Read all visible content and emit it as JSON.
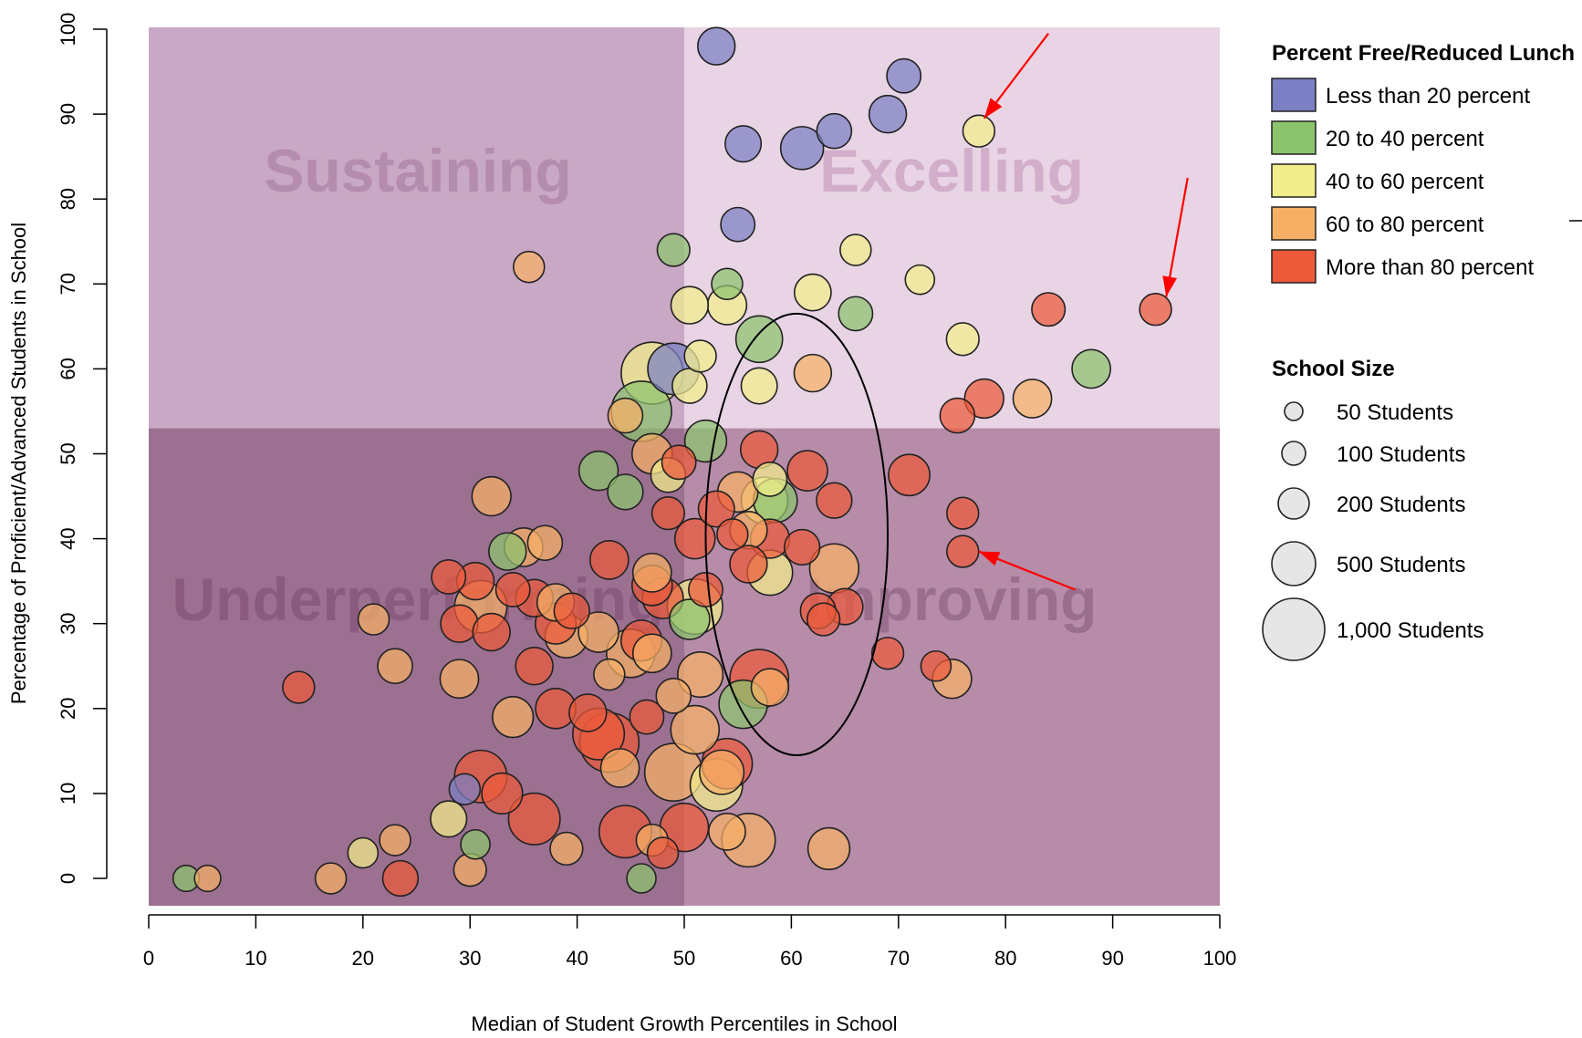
{
  "chart_data": {
    "type": "scatter",
    "xlabel": "Median of Student Growth Percentiles in School",
    "ylabel": "Percentage of Proficient/Advanced Students in School",
    "xlim": [
      0,
      100
    ],
    "ylim": [
      0,
      100
    ],
    "x_ticks": [
      "0",
      "10",
      "20",
      "30",
      "40",
      "50",
      "60",
      "70",
      "80",
      "90",
      "100"
    ],
    "y_ticks": [
      "0",
      "10",
      "20",
      "30",
      "40",
      "50",
      "60",
      "70",
      "80",
      "90",
      "100"
    ],
    "quadrant_split": {
      "x": 50,
      "y": 53
    },
    "quadrants": [
      {
        "label": "Sustaining",
        "position": "top-left",
        "color": "#c8a8c4"
      },
      {
        "label": "Excelling",
        "position": "top-right",
        "color": "#e8d4e4"
      },
      {
        "label": "Underperforming",
        "position": "bottom-left",
        "color": "#9c7090"
      },
      {
        "label": "Improving",
        "position": "bottom-right",
        "color": "#b68ca8"
      }
    ],
    "color_legend": {
      "title": "Percent Free/Reduced Lunch",
      "placement": "top-right",
      "entries": [
        {
          "key": "lt20",
          "label": "Less than 20 percent",
          "color": "#7b7fc4"
        },
        {
          "key": "20_40",
          "label": "20 to 40 percent",
          "color": "#8cc46e"
        },
        {
          "key": "40_60",
          "label": "40 to 60 percent",
          "color": "#f2ee8c"
        },
        {
          "key": "60_80",
          "label": "60 to 80 percent",
          "color": "#f6b066"
        },
        {
          "key": "gt80",
          "label": "More than 80 percent",
          "color": "#ec5a3a"
        }
      ]
    },
    "size_legend": {
      "title": "School Size",
      "placement": "right",
      "entries": [
        {
          "label": "50 Students",
          "students": 50
        },
        {
          "label": "100 Students",
          "students": 100
        },
        {
          "label": "200 Students",
          "students": 200
        },
        {
          "label": "500 Students",
          "students": 500
        },
        {
          "label": "1,000 Students",
          "students": 1000
        }
      ]
    },
    "points": [
      {
        "x": 53,
        "y": 98,
        "g": "lt20",
        "s": 200
      },
      {
        "x": 70.5,
        "y": 94.5,
        "g": "lt20",
        "s": 150
      },
      {
        "x": 69,
        "y": 90,
        "g": "lt20",
        "s": 200
      },
      {
        "x": 77.5,
        "y": 88,
        "g": "40_60",
        "s": 120
      },
      {
        "x": 64,
        "y": 88,
        "g": "lt20",
        "s": 160
      },
      {
        "x": 55.5,
        "y": 86.5,
        "g": "lt20",
        "s": 180
      },
      {
        "x": 61,
        "y": 86,
        "g": "lt20",
        "s": 300
      },
      {
        "x": 55,
        "y": 77,
        "g": "lt20",
        "s": 150
      },
      {
        "x": 49,
        "y": 74,
        "g": "20_40",
        "s": 130
      },
      {
        "x": 66,
        "y": 74,
        "g": "40_60",
        "s": 110
      },
      {
        "x": 35.5,
        "y": 72,
        "g": "60_80",
        "s": 110
      },
      {
        "x": 72,
        "y": 70.5,
        "g": "40_60",
        "s": 90
      },
      {
        "x": 54,
        "y": 70,
        "g": "20_40",
        "s": 110
      },
      {
        "x": 62,
        "y": 69,
        "g": "40_60",
        "s": 190
      },
      {
        "x": 50.5,
        "y": 67.5,
        "g": "40_60",
        "s": 200
      },
      {
        "x": 54,
        "y": 67.5,
        "g": "40_60",
        "s": 230
      },
      {
        "x": 84,
        "y": 67,
        "g": "gt80",
        "s": 140
      },
      {
        "x": 94,
        "y": 67,
        "g": "gt80",
        "s": 120
      },
      {
        "x": 66,
        "y": 66.5,
        "g": "20_40",
        "s": 150
      },
      {
        "x": 57,
        "y": 63.5,
        "g": "20_40",
        "s": 380
      },
      {
        "x": 76,
        "y": 63.5,
        "g": "40_60",
        "s": 130
      },
      {
        "x": 49,
        "y": 60,
        "g": "lt20",
        "s": 500
      },
      {
        "x": 47,
        "y": 59.5,
        "g": "40_60",
        "s": 800
      },
      {
        "x": 51.5,
        "y": 61.5,
        "g": "40_60",
        "s": 120
      },
      {
        "x": 88,
        "y": 60,
        "g": "20_40",
        "s": 220
      },
      {
        "x": 62,
        "y": 59.5,
        "g": "60_80",
        "s": 200
      },
      {
        "x": 50.5,
        "y": 58,
        "g": "40_60",
        "s": 160
      },
      {
        "x": 57,
        "y": 58,
        "g": "40_60",
        "s": 180
      },
      {
        "x": 78,
        "y": 56.5,
        "g": "gt80",
        "s": 230
      },
      {
        "x": 82.5,
        "y": 56.5,
        "g": "60_80",
        "s": 220
      },
      {
        "x": 46,
        "y": 55,
        "g": "20_40",
        "s": 750
      },
      {
        "x": 44.5,
        "y": 54.5,
        "g": "60_80",
        "s": 160
      },
      {
        "x": 75.5,
        "y": 54.5,
        "g": "gt80",
        "s": 160
      },
      {
        "x": 52,
        "y": 51.5,
        "g": "20_40",
        "s": 280
      },
      {
        "x": 57,
        "y": 50.5,
        "g": "gt80",
        "s": 200
      },
      {
        "x": 47,
        "y": 50,
        "g": "60_80",
        "s": 250
      },
      {
        "x": 49.5,
        "y": 49,
        "g": "gt80",
        "s": 150
      },
      {
        "x": 61.5,
        "y": 48,
        "g": "gt80",
        "s": 250
      },
      {
        "x": 71,
        "y": 47.5,
        "g": "gt80",
        "s": 270
      },
      {
        "x": 42,
        "y": 48,
        "g": "20_40",
        "s": 230
      },
      {
        "x": 48.5,
        "y": 47.5,
        "g": "40_60",
        "s": 160
      },
      {
        "x": 58,
        "y": 47,
        "g": "40_60",
        "s": 150
      },
      {
        "x": 32,
        "y": 45,
        "g": "60_80",
        "s": 230
      },
      {
        "x": 44.5,
        "y": 45.5,
        "g": "20_40",
        "s": 170
      },
      {
        "x": 55,
        "y": 45.5,
        "g": "60_80",
        "s": 250
      },
      {
        "x": 57.5,
        "y": 44.5,
        "g": "40_60",
        "s": 380
      },
      {
        "x": 58.5,
        "y": 44.5,
        "g": "20_40",
        "s": 320
      },
      {
        "x": 64,
        "y": 44.5,
        "g": "gt80",
        "s": 170
      },
      {
        "x": 53,
        "y": 43.5,
        "g": "gt80",
        "s": 180
      },
      {
        "x": 48.5,
        "y": 43,
        "g": "gt80",
        "s": 130
      },
      {
        "x": 76,
        "y": 43,
        "g": "gt80",
        "s": 120
      },
      {
        "x": 56,
        "y": 41,
        "g": "60_80",
        "s": 200
      },
      {
        "x": 54.5,
        "y": 40.5,
        "g": "gt80",
        "s": 110
      },
      {
        "x": 51,
        "y": 40,
        "g": "gt80",
        "s": 250
      },
      {
        "x": 58,
        "y": 40,
        "g": "gt80",
        "s": 230
      },
      {
        "x": 37,
        "y": 39.5,
        "g": "60_80",
        "s": 160
      },
      {
        "x": 35,
        "y": 39,
        "g": "60_80",
        "s": 220
      },
      {
        "x": 33.5,
        "y": 38.5,
        "g": "20_40",
        "s": 200
      },
      {
        "x": 61,
        "y": 39,
        "g": "gt80",
        "s": 170
      },
      {
        "x": 76,
        "y": 38.5,
        "g": "gt80",
        "s": 120
      },
      {
        "x": 43,
        "y": 37.5,
        "g": "gt80",
        "s": 220
      },
      {
        "x": 56,
        "y": 37,
        "g": "gt80",
        "s": 200
      },
      {
        "x": 64,
        "y": 36.5,
        "g": "60_80",
        "s": 440
      },
      {
        "x": 58,
        "y": 36,
        "g": "40_60",
        "s": 350
      },
      {
        "x": 47,
        "y": 36,
        "g": "60_80",
        "s": 220
      },
      {
        "x": 28,
        "y": 35.5,
        "g": "gt80",
        "s": 150
      },
      {
        "x": 30.5,
        "y": 35,
        "g": "gt80",
        "s": 200
      },
      {
        "x": 47,
        "y": 34.5,
        "g": "gt80",
        "s": 250
      },
      {
        "x": 34,
        "y": 34,
        "g": "gt80",
        "s": 150
      },
      {
        "x": 52,
        "y": 34,
        "g": "gt80",
        "s": 150
      },
      {
        "x": 48,
        "y": 33,
        "g": "gt80",
        "s": 260
      },
      {
        "x": 36,
        "y": 33,
        "g": "gt80",
        "s": 200
      },
      {
        "x": 38,
        "y": 32.5,
        "g": "60_80",
        "s": 200
      },
      {
        "x": 51,
        "y": 32,
        "g": "40_60",
        "s": 600
      },
      {
        "x": 31,
        "y": 32,
        "g": "60_80",
        "s": 520
      },
      {
        "x": 39.5,
        "y": 31.5,
        "g": "gt80",
        "s": 170
      },
      {
        "x": 62.5,
        "y": 31.5,
        "g": "gt80",
        "s": 170
      },
      {
        "x": 65,
        "y": 32,
        "g": "gt80",
        "s": 180
      },
      {
        "x": 63,
        "y": 30.5,
        "g": "gt80",
        "s": 130
      },
      {
        "x": 50.5,
        "y": 30.5,
        "g": "20_40",
        "s": 250
      },
      {
        "x": 21,
        "y": 30.5,
        "g": "60_80",
        "s": 110
      },
      {
        "x": 38,
        "y": 30,
        "g": "gt80",
        "s": 260
      },
      {
        "x": 29,
        "y": 30,
        "g": "gt80",
        "s": 200
      },
      {
        "x": 32,
        "y": 29,
        "g": "gt80",
        "s": 200
      },
      {
        "x": 42,
        "y": 29,
        "g": "60_80",
        "s": 250
      },
      {
        "x": 39,
        "y": 28.5,
        "g": "60_80",
        "s": 300
      },
      {
        "x": 46,
        "y": 28,
        "g": "gt80",
        "s": 260
      },
      {
        "x": 45,
        "y": 26.5,
        "g": "60_80",
        "s": 420
      },
      {
        "x": 47,
        "y": 26.5,
        "g": "60_80",
        "s": 220
      },
      {
        "x": 69,
        "y": 26.5,
        "g": "gt80",
        "s": 120
      },
      {
        "x": 23,
        "y": 25,
        "g": "60_80",
        "s": 160
      },
      {
        "x": 36,
        "y": 25,
        "g": "gt80",
        "s": 200
      },
      {
        "x": 73.5,
        "y": 25,
        "g": "gt80",
        "s": 100
      },
      {
        "x": 43,
        "y": 24,
        "g": "60_80",
        "s": 110
      },
      {
        "x": 51.5,
        "y": 24,
        "g": "60_80",
        "s": 350
      },
      {
        "x": 57,
        "y": 23.5,
        "g": "gt80",
        "s": 700
      },
      {
        "x": 75,
        "y": 23.5,
        "g": "60_80",
        "s": 230
      },
      {
        "x": 29,
        "y": 23.5,
        "g": "60_80",
        "s": 220
      },
      {
        "x": 14,
        "y": 22.5,
        "g": "gt80",
        "s": 120
      },
      {
        "x": 58,
        "y": 22.5,
        "g": "60_80",
        "s": 200
      },
      {
        "x": 49,
        "y": 21.5,
        "g": "60_80",
        "s": 160
      },
      {
        "x": 55.5,
        "y": 20.5,
        "g": "20_40",
        "s": 420
      },
      {
        "x": 38,
        "y": 20,
        "g": "gt80",
        "s": 250
      },
      {
        "x": 41,
        "y": 19.5,
        "g": "gt80",
        "s": 200
      },
      {
        "x": 34,
        "y": 19,
        "g": "60_80",
        "s": 260
      },
      {
        "x": 46.5,
        "y": 19,
        "g": "gt80",
        "s": 150
      },
      {
        "x": 51,
        "y": 17.5,
        "g": "60_80",
        "s": 420
      },
      {
        "x": 42,
        "y": 17,
        "g": "gt80",
        "s": 500
      },
      {
        "x": 43,
        "y": 16,
        "g": "gt80",
        "s": 720
      },
      {
        "x": 54,
        "y": 13.5,
        "g": "gt80",
        "s": 470
      },
      {
        "x": 53.5,
        "y": 12.5,
        "g": "60_80",
        "s": 330
      },
      {
        "x": 49,
        "y": 12.5,
        "g": "60_80",
        "s": 670
      },
      {
        "x": 44,
        "y": 13,
        "g": "60_80",
        "s": 220
      },
      {
        "x": 31,
        "y": 12,
        "g": "gt80",
        "s": 520
      },
      {
        "x": 53,
        "y": 11,
        "g": "40_60",
        "s": 520
      },
      {
        "x": 29.5,
        "y": 10.5,
        "g": "lt20",
        "s": 110
      },
      {
        "x": 33,
        "y": 10,
        "g": "gt80",
        "s": 260
      },
      {
        "x": 28,
        "y": 7,
        "g": "40_60",
        "s": 180
      },
      {
        "x": 36,
        "y": 7,
        "g": "gt80",
        "s": 500
      },
      {
        "x": 44.5,
        "y": 5.5,
        "g": "gt80",
        "s": 520
      },
      {
        "x": 50,
        "y": 6,
        "g": "gt80",
        "s": 420
      },
      {
        "x": 54,
        "y": 5.5,
        "g": "60_80",
        "s": 190
      },
      {
        "x": 56,
        "y": 4.5,
        "g": "60_80",
        "s": 550
      },
      {
        "x": 47,
        "y": 4.5,
        "g": "60_80",
        "s": 120
      },
      {
        "x": 23,
        "y": 4.5,
        "g": "60_80",
        "s": 110
      },
      {
        "x": 30.5,
        "y": 4,
        "g": "20_40",
        "s": 90
      },
      {
        "x": 39,
        "y": 3.5,
        "g": "60_80",
        "s": 130
      },
      {
        "x": 63.5,
        "y": 3.5,
        "g": "60_80",
        "s": 280
      },
      {
        "x": 20,
        "y": 3,
        "g": "40_60",
        "s": 100
      },
      {
        "x": 48,
        "y": 3,
        "g": "gt80",
        "s": 110
      },
      {
        "x": 30,
        "y": 1,
        "g": "60_80",
        "s": 130
      },
      {
        "x": 3.5,
        "y": 0,
        "g": "20_40",
        "s": 60
      },
      {
        "x": 5.5,
        "y": 0,
        "g": "60_80",
        "s": 60
      },
      {
        "x": 17,
        "y": 0,
        "g": "60_80",
        "s": 110
      },
      {
        "x": 23.5,
        "y": 0,
        "g": "gt80",
        "s": 170
      },
      {
        "x": 46,
        "y": 0,
        "g": "20_40",
        "s": 90
      }
    ],
    "annotations": [
      {
        "type": "ellipse",
        "cx": 60.5,
        "cy": 40.5,
        "rx": 8.5,
        "ry": 26
      },
      {
        "type": "arrow",
        "from": [
          84,
          99.5
        ],
        "to": [
          78,
          89.5
        ]
      },
      {
        "type": "arrow",
        "from": [
          97,
          82.5
        ],
        "to": [
          95,
          68.5
        ]
      },
      {
        "type": "arrow",
        "from": [
          86.5,
          34
        ],
        "to": [
          77.5,
          38.5
        ]
      }
    ],
    "grid": false
  }
}
